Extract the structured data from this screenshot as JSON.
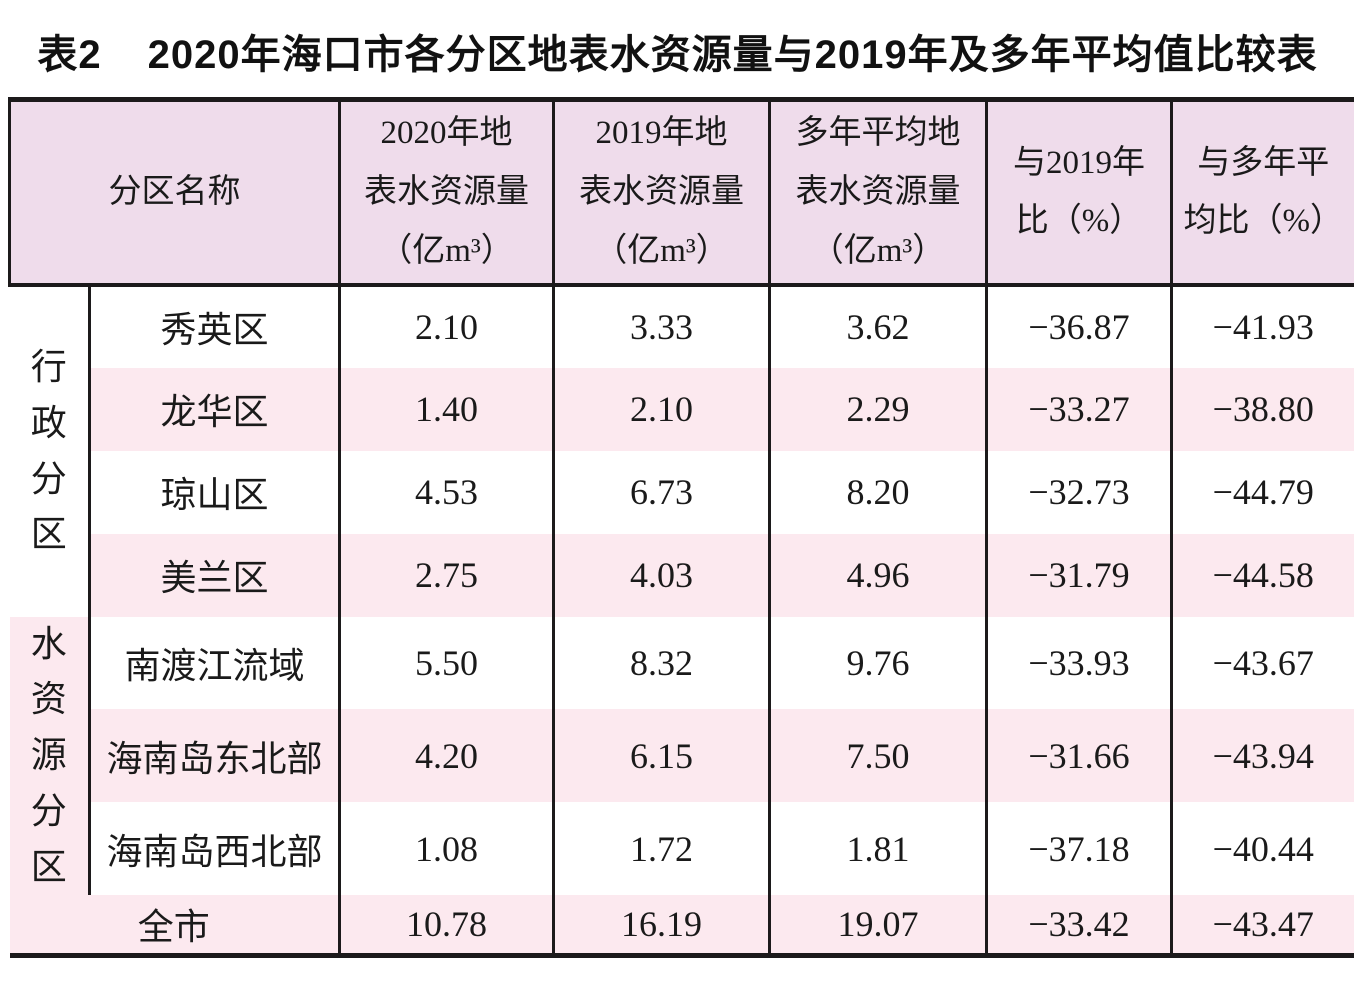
{
  "title": {
    "label": "表2",
    "text": "2020年海口市各分区地表水资源量与2019年及多年平均值比较表"
  },
  "table": {
    "headers": {
      "name": "分区名称",
      "y2020": "2020年地\n表水资源量\n（亿m³）",
      "y2019": "2019年地\n表水资源量\n（亿m³）",
      "multi": "多年平均地\n表水资源量\n（亿m³）",
      "vs2019": "与2019年\n比（%）",
      "vsmulti": "与多年平\n均比（%）"
    },
    "groups": [
      {
        "label": "行政分区",
        "rows": [
          {
            "name": "秀英区",
            "values": [
              "2.10",
              "3.33",
              "3.62",
              "−36.87",
              "−41.93"
            ]
          },
          {
            "name": "龙华区",
            "values": [
              "1.40",
              "2.10",
              "2.29",
              "−33.27",
              "−38.80"
            ]
          },
          {
            "name": "琼山区",
            "values": [
              "4.53",
              "6.73",
              "8.20",
              "−32.73",
              "−44.79"
            ]
          },
          {
            "name": "美兰区",
            "values": [
              "2.75",
              "4.03",
              "4.96",
              "−31.79",
              "−44.58"
            ]
          }
        ]
      },
      {
        "label": "水资源分区",
        "rows": [
          {
            "name": "南渡江流域",
            "values": [
              "5.50",
              "8.32",
              "9.76",
              "−33.93",
              "−43.67"
            ]
          },
          {
            "name": "海南岛东北部",
            "values": [
              "4.20",
              "6.15",
              "7.50",
              "−31.66",
              "−43.94"
            ]
          },
          {
            "name": "海南岛西北部",
            "values": [
              "1.08",
              "1.72",
              "1.81",
              "−37.18",
              "−40.44"
            ]
          }
        ]
      }
    ],
    "total": {
      "name": "全市",
      "values": [
        "10.78",
        "16.19",
        "19.07",
        "−33.42",
        "−43.47"
      ]
    }
  },
  "colors": {
    "header_bg": "#efdceb",
    "stripe_pink": "#fce9ef",
    "border": "#1c1a1b",
    "text": "#1a1a1a"
  }
}
